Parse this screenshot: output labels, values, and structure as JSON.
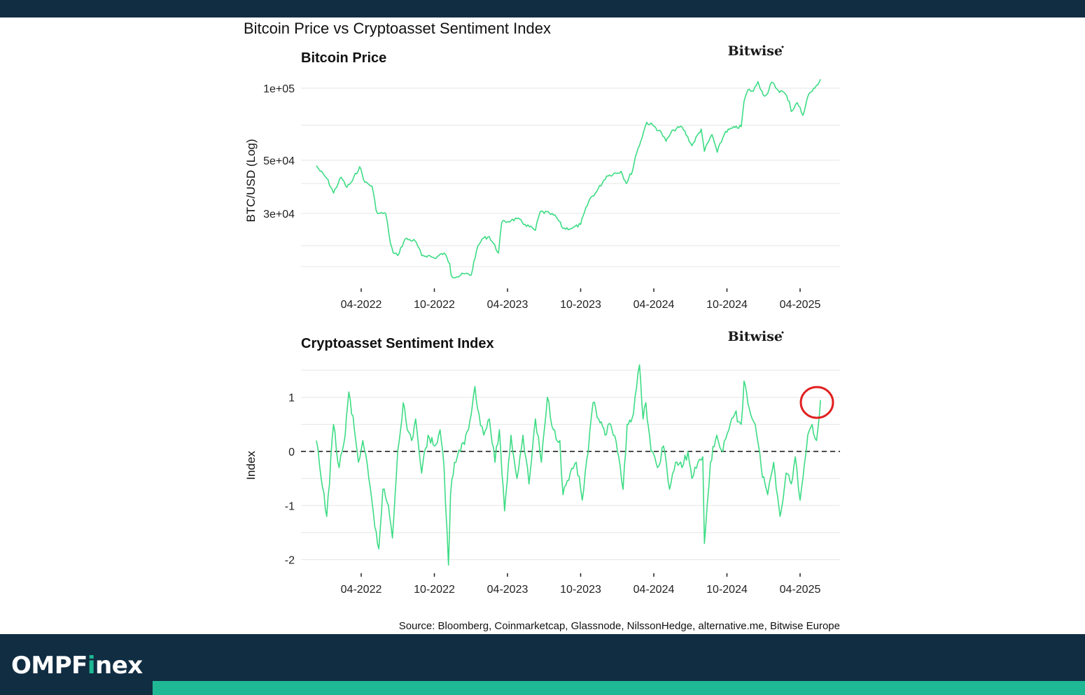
{
  "header": {
    "title": "Bitcoin Price vs Cryptoasset Sentiment Index"
  },
  "footer": {
    "source": "Source: Bloomberg, Coinmarketcap, Glassnode, NilssonHedge, alternative.me, Bitwise Europe",
    "brand_prefix": "OMPF",
    "brand_accent": "i",
    "brand_suffix": "nex"
  },
  "colors": {
    "line": "#3ddc84",
    "annotation": "#e02020",
    "dark_bar": "#112d42",
    "accent": "#1fb894"
  },
  "chart_data": [
    {
      "type": "line",
      "title": "Bitcoin Price",
      "logo": "Bitwise",
      "ylabel": "BTC/USD (Log)",
      "xlabel": "",
      "y_scale": "log",
      "y_ticks": [
        {
          "value": 100000,
          "label": "1e+05"
        },
        {
          "value": 50000,
          "label": "5e+04"
        },
        {
          "value": 30000,
          "label": "3e+04"
        }
      ],
      "x_ticks": [
        "04-2022",
        "10-2022",
        "04-2023",
        "10-2023",
        "04-2024",
        "10-2024",
        "04-2025"
      ],
      "grid": true,
      "series": [
        {
          "x": [
            "2021-12-10",
            "2021-12-20",
            "2022-01-05",
            "2022-01-22",
            "2022-02-10",
            "2022-02-24",
            "2022-03-10",
            "2022-03-28",
            "2022-04-10",
            "2022-04-28",
            "2022-05-08",
            "2022-05-15",
            "2022-06-01",
            "2022-06-13",
            "2022-06-20",
            "2022-07-01",
            "2022-07-20",
            "2022-08-14",
            "2022-08-30",
            "2022-09-15",
            "2022-10-01",
            "2022-10-25",
            "2022-11-08",
            "2022-11-12",
            "2022-11-25",
            "2022-12-15",
            "2023-01-01",
            "2023-01-14",
            "2023-01-28",
            "2023-02-15",
            "2023-03-10",
            "2023-03-18",
            "2023-04-10",
            "2023-04-25",
            "2023-05-15",
            "2023-06-10",
            "2023-06-22",
            "2023-07-15",
            "2023-08-01",
            "2023-08-18",
            "2023-09-10",
            "2023-10-01",
            "2023-10-24",
            "2023-11-10",
            "2023-12-05",
            "2024-01-10",
            "2024-01-23",
            "2024-02-08",
            "2024-02-15",
            "2024-02-28",
            "2024-03-14",
            "2024-04-01",
            "2024-04-20",
            "2024-05-01",
            "2024-05-20",
            "2024-06-10",
            "2024-07-05",
            "2024-07-28",
            "2024-08-05",
            "2024-08-24",
            "2024-09-06",
            "2024-09-27",
            "2024-10-20",
            "2024-11-05",
            "2024-11-12",
            "2024-11-22",
            "2024-12-05",
            "2024-12-17",
            "2024-12-30",
            "2025-01-10",
            "2025-01-20",
            "2025-02-05",
            "2025-02-20",
            "2025-03-05",
            "2025-03-10",
            "2025-03-25",
            "2025-04-08",
            "2025-04-22",
            "2025-05-08",
            "2025-05-22"
          ],
          "values": [
            47500,
            45000,
            42000,
            36500,
            42500,
            38500,
            41000,
            47000,
            40500,
            39000,
            31000,
            30000,
            30000,
            22500,
            20500,
            20000,
            23500,
            23000,
            20000,
            20000,
            19500,
            20500,
            18500,
            16500,
            16300,
            16800,
            16600,
            21000,
            23500,
            24000,
            20500,
            27500,
            28000,
            28500,
            27000,
            25500,
            30500,
            30000,
            29000,
            26000,
            26000,
            27000,
            34500,
            37000,
            43000,
            45000,
            40000,
            45500,
            52000,
            60000,
            72000,
            69500,
            65000,
            60000,
            67000,
            69000,
            57500,
            67500,
            54500,
            64000,
            54000,
            66000,
            68500,
            69000,
            88000,
            98500,
            97000,
            106500,
            93500,
            95000,
            106000,
            98000,
            96000,
            88000,
            80000,
            87000,
            77000,
            94000,
            100000,
            109000
          ]
        }
      ]
    },
    {
      "type": "line",
      "title": "Cryptoasset Sentiment Index",
      "logo": "Bitwise",
      "ylabel": "Index",
      "xlabel": "",
      "y_ticks": [
        {
          "value": 1,
          "label": "1"
        },
        {
          "value": 0,
          "label": "0"
        },
        {
          "value": -1,
          "label": "-1"
        },
        {
          "value": -2,
          "label": "-2"
        }
      ],
      "x_ticks": [
        "04-2022",
        "10-2022",
        "04-2023",
        "10-2023",
        "04-2024",
        "10-2024",
        "04-2025"
      ],
      "reference_line": 0,
      "grid": true,
      "series": [
        {
          "x": [
            "2021-12-10",
            "2021-12-22",
            "2022-01-05",
            "2022-01-22",
            "2022-02-05",
            "2022-02-20",
            "2022-03-01",
            "2022-03-15",
            "2022-03-25",
            "2022-04-05",
            "2022-04-20",
            "2022-05-05",
            "2022-05-15",
            "2022-05-25",
            "2022-06-08",
            "2022-06-18",
            "2022-07-01",
            "2022-07-15",
            "2022-07-25",
            "2022-08-05",
            "2022-08-15",
            "2022-08-30",
            "2022-09-15",
            "2022-10-01",
            "2022-10-15",
            "2022-10-25",
            "2022-11-05",
            "2022-11-10",
            "2022-11-20",
            "2022-12-05",
            "2022-12-25",
            "2023-01-10",
            "2023-01-20",
            "2023-02-01",
            "2023-02-15",
            "2023-03-01",
            "2023-03-12",
            "2023-03-25",
            "2023-04-10",
            "2023-04-25",
            "2023-05-10",
            "2023-05-25",
            "2023-06-10",
            "2023-06-25",
            "2023-07-10",
            "2023-07-25",
            "2023-08-10",
            "2023-08-18",
            "2023-09-05",
            "2023-09-20",
            "2023-10-05",
            "2023-10-20",
            "2023-11-01",
            "2023-11-15",
            "2023-12-01",
            "2023-12-15",
            "2024-01-01",
            "2024-01-15",
            "2024-01-25",
            "2024-02-10",
            "2024-02-25",
            "2024-03-05",
            "2024-03-12",
            "2024-03-25",
            "2024-04-10",
            "2024-04-25",
            "2024-05-10",
            "2024-05-25",
            "2024-06-10",
            "2024-06-25",
            "2024-07-05",
            "2024-07-20",
            "2024-08-01",
            "2024-08-05",
            "2024-08-20",
            "2024-09-05",
            "2024-09-20",
            "2024-10-05",
            "2024-10-20",
            "2024-11-05",
            "2024-11-12",
            "2024-11-25",
            "2024-12-10",
            "2024-12-25",
            "2025-01-10",
            "2025-01-25",
            "2025-02-10",
            "2025-02-25",
            "2025-03-10",
            "2025-03-20",
            "2025-04-01",
            "2025-04-08",
            "2025-04-20",
            "2025-05-01",
            "2025-05-12",
            "2025-05-22"
          ],
          "values": [
            0.2,
            -0.5,
            -1.2,
            0.5,
            -0.3,
            0.3,
            1.1,
            0.4,
            -0.2,
            0.2,
            -0.5,
            -1.4,
            -1.8,
            -0.7,
            -1.0,
            -1.6,
            0.0,
            0.9,
            0.4,
            0.2,
            0.6,
            -0.4,
            0.3,
            0.1,
            0.4,
            -0.3,
            -2.1,
            -0.8,
            -0.2,
            0.0,
            0.4,
            1.2,
            0.7,
            0.3,
            0.6,
            -0.2,
            0.4,
            -1.1,
            0.3,
            -0.5,
            0.3,
            -0.6,
            0.6,
            -0.2,
            1.0,
            0.4,
            0.2,
            -0.8,
            -0.4,
            -0.2,
            -0.9,
            0.0,
            0.9,
            0.6,
            0.3,
            0.5,
            0.0,
            -0.7,
            0.5,
            0.7,
            1.6,
            0.6,
            0.9,
            0.0,
            -0.3,
            0.1,
            -0.7,
            -0.2,
            -0.3,
            0.0,
            -0.5,
            -0.2,
            -0.1,
            -1.7,
            -0.2,
            0.3,
            0.0,
            0.4,
            0.7,
            0.5,
            1.3,
            0.8,
            0.5,
            -0.3,
            -0.8,
            -0.2,
            -1.2,
            -0.4,
            -0.6,
            -0.1,
            -0.9,
            -0.5,
            0.3,
            0.5,
            0.2,
            0.95
          ]
        }
      ],
      "annotation": "red circle around latest reading"
    }
  ]
}
